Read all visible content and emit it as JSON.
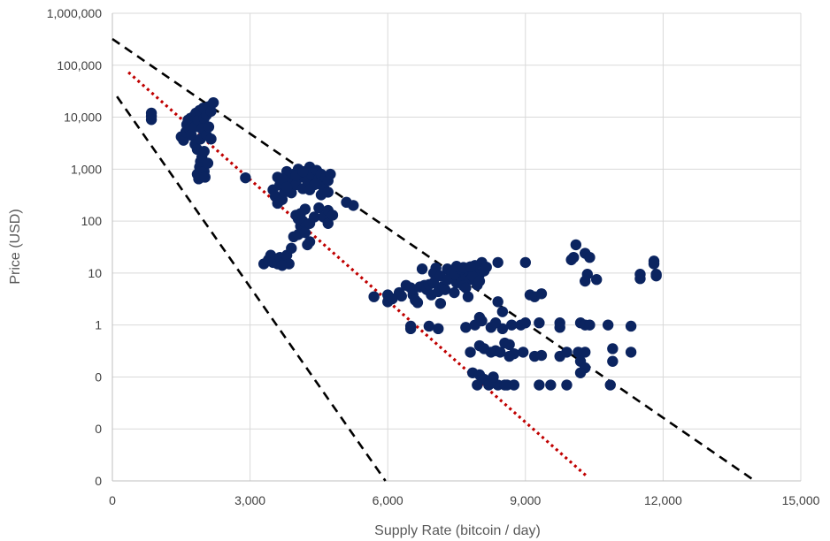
{
  "chart_data": {
    "type": "scatter",
    "title": "",
    "xlabel": "Supply Rate (bitcoin / day)",
    "ylabel": "Price (USD)",
    "xlim": [
      0,
      15000
    ],
    "ylim": [
      0.001,
      1000000
    ],
    "y_scale": "log",
    "grid": true,
    "x_ticks": [
      {
        "value": 0,
        "label": "0"
      },
      {
        "value": 3000,
        "label": "3,000"
      },
      {
        "value": 6000,
        "label": "6,000"
      },
      {
        "value": 9000,
        "label": "9,000"
      },
      {
        "value": 12000,
        "label": "12,000"
      },
      {
        "value": 15000,
        "label": "15,000"
      }
    ],
    "y_ticks": [
      {
        "value": 0.001,
        "label": "0"
      },
      {
        "value": 0.01,
        "label": "0"
      },
      {
        "value": 0.1,
        "label": "0"
      },
      {
        "value": 1,
        "label": "1"
      },
      {
        "value": 10,
        "label": "10"
      },
      {
        "value": 100,
        "label": "100"
      },
      {
        "value": 1000,
        "label": "1,000"
      },
      {
        "value": 10000,
        "label": "10,000"
      },
      {
        "value": 100000,
        "label": "100,000"
      },
      {
        "value": 1000000,
        "label": "1,000,000"
      }
    ],
    "colors": {
      "points": "#0b2460",
      "bound_lines": "#000000",
      "trend_line": "#c00000",
      "grid": "#d9d9d9"
    },
    "points": [
      [
        850,
        12000
      ],
      [
        850,
        10500
      ],
      [
        850,
        9000
      ],
      [
        1500,
        4200
      ],
      [
        1550,
        3600
      ],
      [
        1600,
        5200
      ],
      [
        1620,
        7200
      ],
      [
        1650,
        8800
      ],
      [
        1680,
        6000
      ],
      [
        1700,
        9500
      ],
      [
        1720,
        4500
      ],
      [
        1750,
        7800
      ],
      [
        1780,
        10500
      ],
      [
        1800,
        3000
      ],
      [
        1800,
        6500
      ],
      [
        1820,
        12000
      ],
      [
        1850,
        2400
      ],
      [
        1850,
        800
      ],
      [
        1870,
        8800
      ],
      [
        1880,
        650
      ],
      [
        1900,
        1100
      ],
      [
        1900,
        13500
      ],
      [
        1920,
        1400
      ],
      [
        1920,
        3800
      ],
      [
        1950,
        1700
      ],
      [
        1950,
        6000
      ],
      [
        1980,
        15000
      ],
      [
        2000,
        900
      ],
      [
        2000,
        2200
      ],
      [
        2000,
        9500
      ],
      [
        2020,
        700
      ],
      [
        2050,
        11000
      ],
      [
        2050,
        4500
      ],
      [
        2080,
        1300
      ],
      [
        2100,
        16000
      ],
      [
        2100,
        6500
      ],
      [
        2150,
        13000
      ],
      [
        2150,
        3800
      ],
      [
        2200,
        19000
      ],
      [
        2900,
        680
      ],
      [
        3300,
        15
      ],
      [
        3400,
        18
      ],
      [
        3450,
        22
      ],
      [
        3500,
        16
      ],
      [
        3600,
        15
      ],
      [
        3650,
        20
      ],
      [
        3750,
        17
      ],
      [
        3800,
        22
      ],
      [
        3850,
        15
      ],
      [
        3700,
        14
      ],
      [
        3500,
        400
      ],
      [
        3550,
        300
      ],
      [
        3600,
        700
      ],
      [
        3650,
        500
      ],
      [
        3700,
        260
      ],
      [
        3750,
        360
      ],
      [
        3800,
        900
      ],
      [
        3850,
        600
      ],
      [
        3900,
        350
      ],
      [
        3950,
        800
      ],
      [
        4000,
        500
      ],
      [
        4050,
        1000
      ],
      [
        4100,
        700
      ],
      [
        4150,
        420
      ],
      [
        4200,
        850
      ],
      [
        4250,
        600
      ],
      [
        4300,
        1100
      ],
      [
        4350,
        750
      ],
      [
        4400,
        500
      ],
      [
        4450,
        950
      ],
      [
        4500,
        650
      ],
      [
        4550,
        800
      ],
      [
        4600,
        450
      ],
      [
        4650,
        700
      ],
      [
        4700,
        600
      ],
      [
        4750,
        800
      ],
      [
        3600,
        220
      ],
      [
        3700,
        650
      ],
      [
        3800,
        450
      ],
      [
        4000,
        750
      ],
      [
        4150,
        900
      ],
      [
        4300,
        400
      ],
      [
        4450,
        520
      ],
      [
        3900,
        30
      ],
      [
        3950,
        50
      ],
      [
        4050,
        55
      ],
      [
        4100,
        80
      ],
      [
        4150,
        100
      ],
      [
        4200,
        60
      ],
      [
        4250,
        35
      ],
      [
        4300,
        40
      ],
      [
        4000,
        130
      ],
      [
        4050,
        110
      ],
      [
        4100,
        140
      ],
      [
        4200,
        170
      ],
      [
        4300,
        90
      ],
      [
        4400,
        120
      ],
      [
        4500,
        180
      ],
      [
        4600,
        120
      ],
      [
        4700,
        90
      ],
      [
        4700,
        160
      ],
      [
        4800,
        130
      ],
      [
        5100,
        230
      ],
      [
        5250,
        200
      ],
      [
        4550,
        320
      ],
      [
        4700,
        360
      ],
      [
        5700,
        3.5
      ],
      [
        6000,
        3.8
      ],
      [
        6000,
        2.8
      ],
      [
        6100,
        3.2
      ],
      [
        6250,
        4.2
      ],
      [
        6300,
        3.6
      ],
      [
        6400,
        5.8
      ],
      [
        6500,
        5.2
      ],
      [
        6550,
        3.8
      ],
      [
        6600,
        3.0
      ],
      [
        6650,
        2.7
      ],
      [
        6700,
        5.4
      ],
      [
        6750,
        12
      ],
      [
        6800,
        5.8
      ],
      [
        6850,
        4.8
      ],
      [
        6900,
        6.0
      ],
      [
        6950,
        3.8
      ],
      [
        7000,
        6.5
      ],
      [
        7050,
        12.5
      ],
      [
        7100,
        4.4
      ],
      [
        7150,
        2.6
      ],
      [
        7200,
        5.5
      ],
      [
        7250,
        4.8
      ],
      [
        7300,
        12
      ],
      [
        7350,
        8.0
      ],
      [
        7400,
        10.5
      ],
      [
        7450,
        4.2
      ],
      [
        7500,
        6.5
      ],
      [
        7550,
        11
      ],
      [
        7600,
        7.8
      ],
      [
        7650,
        5.7
      ],
      [
        7700,
        9.3
      ],
      [
        7750,
        3.5
      ],
      [
        7800,
        7.5
      ],
      [
        7850,
        11.5
      ],
      [
        7900,
        14
      ],
      [
        7950,
        5.9
      ],
      [
        8000,
        9.5
      ],
      [
        8050,
        16
      ],
      [
        8100,
        11
      ],
      [
        8150,
        13
      ],
      [
        7000,
        10
      ],
      [
        7150,
        8.8
      ],
      [
        7300,
        7.4
      ],
      [
        7450,
        9.5
      ],
      [
        7600,
        11.8
      ],
      [
        7700,
        5.2
      ],
      [
        7850,
        8.6
      ],
      [
        8000,
        7.0
      ],
      [
        7500,
        13.5
      ],
      [
        7650,
        12.8
      ],
      [
        7800,
        13.2
      ],
      [
        8400,
        16
      ],
      [
        6500,
        0.95
      ],
      [
        6500,
        0.85
      ],
      [
        6900,
        0.95
      ],
      [
        7100,
        0.85
      ],
      [
        7700,
        0.9
      ],
      [
        7900,
        1.0
      ],
      [
        8000,
        1.4
      ],
      [
        8050,
        1.2
      ],
      [
        8250,
        0.9
      ],
      [
        8500,
        1.8
      ],
      [
        8400,
        2.8
      ],
      [
        8500,
        0.85
      ],
      [
        8350,
        1.1
      ],
      [
        8700,
        1.0
      ],
      [
        8900,
        1.0
      ],
      [
        9100,
        3.8
      ],
      [
        9000,
        1.1
      ],
      [
        9300,
        1.1
      ],
      [
        9200,
        3.5
      ],
      [
        9350,
        4.0
      ],
      [
        9750,
        1.1
      ],
      [
        9750,
        0.9
      ],
      [
        10200,
        1.1
      ],
      [
        10300,
        1.0
      ],
      [
        10400,
        1.0
      ],
      [
        10800,
        1.0
      ],
      [
        11300,
        0.95
      ],
      [
        7800,
        0.3
      ],
      [
        8000,
        0.4
      ],
      [
        8100,
        0.35
      ],
      [
        8250,
        0.3
      ],
      [
        8350,
        0.32
      ],
      [
        8450,
        0.3
      ],
      [
        8550,
        0.45
      ],
      [
        8650,
        0.42
      ],
      [
        8750,
        0.28
      ],
      [
        8950,
        0.3
      ],
      [
        9200,
        0.25
      ],
      [
        9350,
        0.26
      ],
      [
        9750,
        0.25
      ],
      [
        9900,
        0.3
      ],
      [
        10150,
        0.3
      ],
      [
        10300,
        0.3
      ],
      [
        10200,
        0.2
      ],
      [
        10300,
        0.15
      ],
      [
        10200,
        0.12
      ],
      [
        10900,
        0.35
      ],
      [
        10900,
        0.2
      ],
      [
        11300,
        0.3
      ],
      [
        8650,
        0.25
      ],
      [
        7850,
        0.12
      ],
      [
        8000,
        0.11
      ],
      [
        8100,
        0.09
      ],
      [
        7950,
        0.07
      ],
      [
        8200,
        0.07
      ],
      [
        8400,
        0.07
      ],
      [
        8600,
        0.07
      ],
      [
        8750,
        0.07
      ],
      [
        9300,
        0.07
      ],
      [
        9550,
        0.07
      ],
      [
        9900,
        0.07
      ],
      [
        10850,
        0.07
      ],
      [
        8550,
        0.07
      ],
      [
        8300,
        0.1
      ],
      [
        9000,
        16
      ],
      [
        10000,
        18
      ],
      [
        10050,
        20
      ],
      [
        10100,
        35
      ],
      [
        10300,
        24
      ],
      [
        10400,
        20
      ],
      [
        10350,
        9.5
      ],
      [
        10300,
        7.0
      ],
      [
        10550,
        7.5
      ],
      [
        11500,
        9.5
      ],
      [
        11500,
        7.8
      ],
      [
        11800,
        17
      ],
      [
        11800,
        15
      ],
      [
        11850,
        9.5
      ],
      [
        11850,
        8.8
      ]
    ],
    "upper_bound_line": [
      [
        0,
        320000
      ],
      [
        14000,
        0.001
      ]
    ],
    "lower_bound_line": [
      [
        100,
        25000
      ],
      [
        5950,
        0.001
      ]
    ],
    "trend_line": [
      [
        350,
        73000
      ],
      [
        10350,
        0.0012
      ]
    ]
  }
}
